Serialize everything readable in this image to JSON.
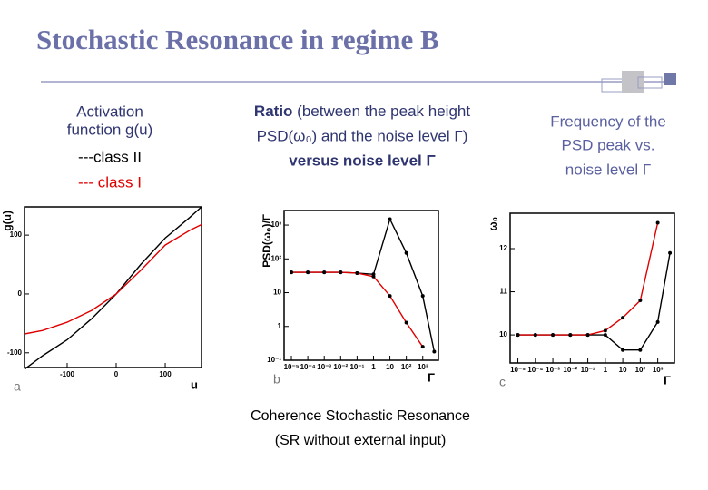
{
  "slide": {
    "title": "Stochastic Resonance in regime B",
    "column_a": {
      "lines": [
        "Activation",
        "function g(u)"
      ],
      "class_ii": "---class II",
      "class_i": "--- class I"
    },
    "column_b": {
      "bold_lead": "Ratio",
      "lines": [
        "(between the peak height",
        "PSD(ω₀) and the noise level Γ)"
      ],
      "bold_tail": "versus noise level Γ"
    },
    "column_c": {
      "lines": [
        "Frequency of the",
        "PSD peak vs.",
        "noise level Γ"
      ]
    },
    "caption": [
      "Coherence Stochastic Resonance",
      "(SR without external input)"
    ]
  },
  "chart_data": [
    {
      "type": "line",
      "panel": "a",
      "x_label": "u",
      "y_label": "g(u)",
      "x": [
        -187,
        -150,
        -100,
        -50,
        0,
        50,
        100,
        150,
        174
      ],
      "xlim": [
        -187,
        174
      ],
      "xticks": [
        -100,
        0,
        100
      ],
      "ylim": [
        -125,
        148
      ],
      "yticks": [
        -100,
        0,
        100
      ],
      "xlog": false,
      "ylog": false,
      "markers": false,
      "series": [
        {
          "color": "#000000",
          "values": [
            -128,
            -105,
            -78,
            -42,
            0,
            50,
            95,
            130,
            148
          ]
        },
        {
          "color": "#e00000",
          "values": [
            -68,
            -62,
            -48,
            -28,
            0,
            40,
            83,
            108,
            118
          ]
        }
      ]
    },
    {
      "type": "line",
      "panel": "b",
      "x_label": "Γ",
      "y_label": "PSD(ω₀)/Γ",
      "x": [
        1e-05,
        0.0001,
        0.001,
        0.01,
        0.1,
        1,
        10,
        100,
        1000,
        5000
      ],
      "xlim": [
        3.6e-06,
        9000
      ],
      "xticks": [
        {
          "value": 1e-05,
          "label": "10⁻⁵"
        },
        {
          "value": 0.0001,
          "label": "10⁻⁴"
        },
        {
          "value": 0.001,
          "label": "10⁻³"
        },
        {
          "value": 0.01,
          "label": "10⁻²"
        },
        {
          "value": 0.1,
          "label": "10⁻¹"
        },
        1,
        10,
        {
          "value": 100,
          "label": "10²"
        },
        {
          "value": 1000,
          "label": "10³"
        }
      ],
      "ylim": [
        0.1,
        2700
      ],
      "yticks": [
        {
          "value": 0.1,
          "label": "10⁻¹"
        },
        1,
        10,
        {
          "value": 100,
          "label": "10²"
        },
        {
          "value": 1000,
          "label": "10³"
        }
      ],
      "xlog": true,
      "ylog": true,
      "markers": true,
      "series": [
        {
          "color": "#000000",
          "values": [
            40,
            40,
            40,
            40,
            38,
            35,
            1500,
            150,
            8,
            0.18
          ]
        },
        {
          "color": "#e00000",
          "values": [
            40,
            40,
            40,
            40,
            38,
            30,
            8,
            1.3,
            0.25,
            null
          ]
        }
      ]
    },
    {
      "type": "line",
      "panel": "c",
      "x_label": "Γ",
      "y_label": "ω₀",
      "x": [
        1e-05,
        0.0001,
        0.001,
        0.01,
        0.1,
        1,
        10,
        100,
        1000,
        5000
      ],
      "xlim": [
        3.6e-06,
        9000
      ],
      "xticks": [
        {
          "value": 1e-05,
          "label": "10⁻⁵"
        },
        {
          "value": 0.0001,
          "label": "10⁻⁴"
        },
        {
          "value": 0.001,
          "label": "10⁻³"
        },
        {
          "value": 0.01,
          "label": "10⁻²"
        },
        {
          "value": 0.1,
          "label": "10⁻¹"
        },
        1,
        10,
        {
          "value": 100,
          "label": "10²"
        },
        {
          "value": 1000,
          "label": "10³"
        }
      ],
      "ylim": [
        9.35,
        12.82
      ],
      "yticks": [
        10,
        11,
        12
      ],
      "xlog": true,
      "ylog": false,
      "markers": true,
      "series": [
        {
          "color": "#000000",
          "values": [
            10,
            10,
            10,
            10,
            10,
            10,
            9.65,
            9.65,
            10.3,
            11.9
          ]
        },
        {
          "color": "#e00000",
          "values": [
            10,
            10,
            10,
            10,
            10,
            10.1,
            10.4,
            10.8,
            12.6,
            null
          ]
        }
      ]
    }
  ]
}
